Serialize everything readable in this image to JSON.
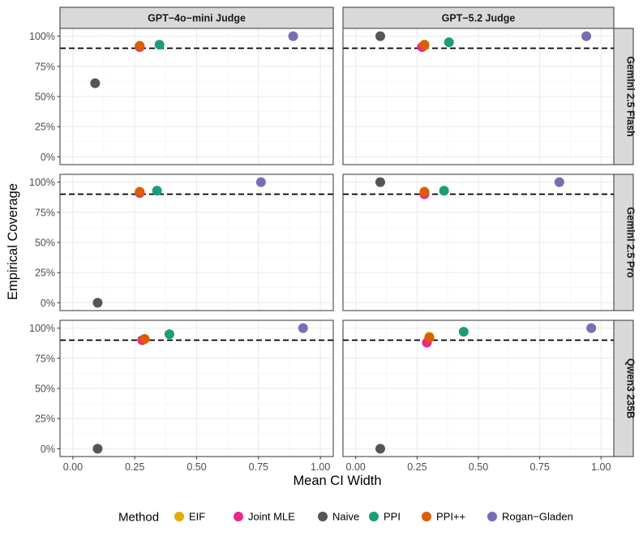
{
  "chart_data": {
    "type": "scatter",
    "facet_columns": [
      "GPT−4o−mini Judge",
      "GPT−5.2 Judge"
    ],
    "facet_rows": [
      "Gemini 2.5 Flash",
      "Gemini 2.5 Pro",
      "Qwen3 235B"
    ],
    "xlabel": "Mean CI Width",
    "ylabel": "Empirical Coverage",
    "xlim": [
      0,
      1
    ],
    "ylim": [
      0,
      1
    ],
    "x_ticks": [
      0,
      0.25,
      0.5,
      0.75,
      1
    ],
    "x_tick_labels": [
      "0.00",
      "0.25",
      "0.50",
      "0.75",
      "1.00"
    ],
    "y_ticks": [
      0,
      0.25,
      0.5,
      0.75,
      1
    ],
    "y_tick_labels": [
      "0%",
      "25%",
      "50%",
      "75%",
      "100%"
    ],
    "reference_line": 0.9,
    "grid": true,
    "legend": {
      "title": "Method",
      "position": "bottom",
      "items": [
        {
          "name": "EIF",
          "color": "#E6AB02"
        },
        {
          "name": "Joint MLE",
          "color": "#E7298A"
        },
        {
          "name": "Naive",
          "color": "#555555"
        },
        {
          "name": "PPI",
          "color": "#1B9E77"
        },
        {
          "name": "PPI++",
          "color": "#D95F02"
        },
        {
          "name": "Rogan−Gladen",
          "color": "#7570B3"
        }
      ]
    },
    "panels": [
      {
        "row": 0,
        "col": 0,
        "points": [
          {
            "method": "Naive",
            "x": 0.09,
            "y": 0.61
          },
          {
            "method": "EIF",
            "x": 0.27,
            "y": 0.92
          },
          {
            "method": "Joint MLE",
            "x": 0.27,
            "y": 0.91
          },
          {
            "method": "PPI++",
            "x": 0.27,
            "y": 0.92
          },
          {
            "method": "PPI",
            "x": 0.35,
            "y": 0.93
          },
          {
            "method": "Rogan−Gladen",
            "x": 0.89,
            "y": 1.0
          }
        ]
      },
      {
        "row": 0,
        "col": 1,
        "points": [
          {
            "method": "Naive",
            "x": 0.1,
            "y": 1.0
          },
          {
            "method": "EIF",
            "x": 0.28,
            "y": 0.92
          },
          {
            "method": "Joint MLE",
            "x": 0.27,
            "y": 0.91
          },
          {
            "method": "PPI++",
            "x": 0.28,
            "y": 0.93
          },
          {
            "method": "PPI",
            "x": 0.38,
            "y": 0.95
          },
          {
            "method": "Rogan−Gladen",
            "x": 0.94,
            "y": 1.0
          }
        ]
      },
      {
        "row": 1,
        "col": 0,
        "points": [
          {
            "method": "Naive",
            "x": 0.1,
            "y": 0.0
          },
          {
            "method": "EIF",
            "x": 0.27,
            "y": 0.92
          },
          {
            "method": "Joint MLE",
            "x": 0.27,
            "y": 0.91
          },
          {
            "method": "PPI++",
            "x": 0.27,
            "y": 0.92
          },
          {
            "method": "PPI",
            "x": 0.34,
            "y": 0.93
          },
          {
            "method": "Rogan−Gladen",
            "x": 0.76,
            "y": 1.0
          }
        ]
      },
      {
        "row": 1,
        "col": 1,
        "points": [
          {
            "method": "Naive",
            "x": 0.1,
            "y": 1.0
          },
          {
            "method": "EIF",
            "x": 0.28,
            "y": 0.92
          },
          {
            "method": "Joint MLE",
            "x": 0.28,
            "y": 0.9
          },
          {
            "method": "PPI++",
            "x": 0.28,
            "y": 0.92
          },
          {
            "method": "PPI",
            "x": 0.36,
            "y": 0.93
          },
          {
            "method": "Rogan−Gladen",
            "x": 0.83,
            "y": 1.0
          }
        ]
      },
      {
        "row": 2,
        "col": 0,
        "points": [
          {
            "method": "Naive",
            "x": 0.1,
            "y": 0.0
          },
          {
            "method": "EIF",
            "x": 0.29,
            "y": 0.91
          },
          {
            "method": "Joint MLE",
            "x": 0.28,
            "y": 0.9
          },
          {
            "method": "PPI++",
            "x": 0.29,
            "y": 0.91
          },
          {
            "method": "PPI",
            "x": 0.39,
            "y": 0.95
          },
          {
            "method": "Rogan−Gladen",
            "x": 0.93,
            "y": 1.0
          }
        ]
      },
      {
        "row": 2,
        "col": 1,
        "points": [
          {
            "method": "Naive",
            "x": 0.1,
            "y": 0.0
          },
          {
            "method": "EIF",
            "x": 0.3,
            "y": 0.93
          },
          {
            "method": "Joint MLE",
            "x": 0.29,
            "y": 0.88
          },
          {
            "method": "PPI++",
            "x": 0.3,
            "y": 0.92
          },
          {
            "method": "PPI",
            "x": 0.44,
            "y": 0.97
          },
          {
            "method": "Rogan−Gladen",
            "x": 0.96,
            "y": 1.0
          }
        ]
      }
    ]
  }
}
